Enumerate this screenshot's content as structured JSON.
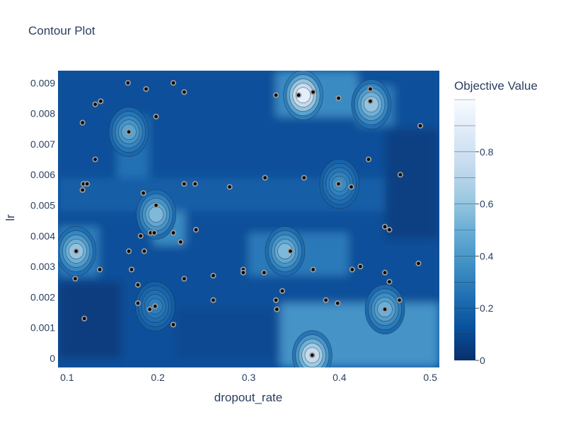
{
  "chart_data": {
    "type": "contour",
    "title": "Contour Plot",
    "xlabel": "dropout_rate",
    "ylabel": "lr",
    "xlim": [
      0.09,
      0.51
    ],
    "ylim": [
      -0.0003,
      0.0094
    ],
    "x_ticks": [
      0.1,
      0.2,
      0.3,
      0.4,
      0.5
    ],
    "x_tick_labels": [
      "0.1",
      "0.2",
      "0.3",
      "0.4",
      "0.5"
    ],
    "y_ticks": [
      0,
      0.001,
      0.002,
      0.003,
      0.004,
      0.005,
      0.006,
      0.007,
      0.008,
      0.009
    ],
    "y_tick_labels": [
      "0",
      "0.001",
      "0.002",
      "0.003",
      "0.004",
      "0.005",
      "0.006",
      "0.007",
      "0.008",
      "0.009"
    ],
    "colorbar": {
      "title": "Objective Value",
      "range": [
        0,
        1
      ],
      "ticks": [
        0,
        0.2,
        0.4,
        0.6,
        0.8
      ],
      "tick_labels": [
        "0",
        "0.2",
        "0.4",
        "0.6",
        "0.8"
      ],
      "colorscale": [
        "#08306b",
        "#08519c",
        "#2171b5",
        "#4292c6",
        "#6baed6",
        "#9ecae1",
        "#c6dbef",
        "#deebf7",
        "#f7fbff"
      ]
    },
    "background_level": 0.12,
    "regions": [
      {
        "x": [
          0.09,
          0.51
        ],
        "y": [
          -0.0003,
          0.0094
        ],
        "value": 0.12
      },
      {
        "x": [
          0.335,
          0.51
        ],
        "y": [
          -0.0003,
          0.0018
        ],
        "value": 0.38
      },
      {
        "x": [
          0.09,
          0.135
        ],
        "y": [
          0.0027,
          0.0043
        ],
        "value": 0.3
      },
      {
        "x": [
          0.155,
          0.19
        ],
        "y": [
          0.0059,
          0.0079
        ],
        "value": 0.25
      },
      {
        "x": [
          0.195,
          0.23
        ],
        "y": [
          0.0037,
          0.0056
        ],
        "value": 0.35
      },
      {
        "x": [
          0.33,
          0.42
        ],
        "y": [
          0.0079,
          0.0094
        ],
        "value": 0.35
      },
      {
        "x": [
          0.3,
          0.41
        ],
        "y": [
          0.0027,
          0.0041
        ],
        "value": 0.28
      },
      {
        "x": [
          0.42,
          0.46
        ],
        "y": [
          0.0076,
          0.0089
        ],
        "value": 0.3
      },
      {
        "x": [
          0.09,
          0.51
        ],
        "y": [
          0.0048,
          0.0059
        ],
        "value": 0.18
      },
      {
        "x": [
          0.22,
          0.33
        ],
        "y": [
          0.0,
          0.0016
        ],
        "value": 0.1
      },
      {
        "x": [
          0.09,
          0.16
        ],
        "y": [
          0.0,
          0.0025
        ],
        "value": 0.05
      },
      {
        "x": [
          0.45,
          0.51
        ],
        "y": [
          0.0039,
          0.0075
        ],
        "value": 0.06
      }
    ],
    "peaks": [
      {
        "x": 0.37,
        "y": 0.0001,
        "value": 0.75
      },
      {
        "x": 0.36,
        "y": 0.0086,
        "value": 0.9
      },
      {
        "x": 0.435,
        "y": 0.0083,
        "value": 0.6
      },
      {
        "x": 0.34,
        "y": 0.0035,
        "value": 0.55
      },
      {
        "x": 0.11,
        "y": 0.0035,
        "value": 0.6
      },
      {
        "x": 0.168,
        "y": 0.0074,
        "value": 0.45
      },
      {
        "x": 0.198,
        "y": 0.0047,
        "value": 0.55
      },
      {
        "x": 0.45,
        "y": 0.0016,
        "value": 0.5
      },
      {
        "x": 0.4,
        "y": 0.0057,
        "value": 0.35
      },
      {
        "x": 0.197,
        "y": 0.0017,
        "value": 0.3
      }
    ],
    "points": [
      {
        "x": 0.167,
        "y": 0.009
      },
      {
        "x": 0.187,
        "y": 0.0088
      },
      {
        "x": 0.217,
        "y": 0.009
      },
      {
        "x": 0.229,
        "y": 0.0087
      },
      {
        "x": 0.131,
        "y": 0.0083
      },
      {
        "x": 0.137,
        "y": 0.0084
      },
      {
        "x": 0.117,
        "y": 0.0077
      },
      {
        "x": 0.198,
        "y": 0.0079
      },
      {
        "x": 0.168,
        "y": 0.0074
      },
      {
        "x": 0.131,
        "y": 0.0065
      },
      {
        "x": 0.118,
        "y": 0.0057
      },
      {
        "x": 0.122,
        "y": 0.0057
      },
      {
        "x": 0.117,
        "y": 0.0055
      },
      {
        "x": 0.184,
        "y": 0.0054
      },
      {
        "x": 0.229,
        "y": 0.0057
      },
      {
        "x": 0.241,
        "y": 0.0057
      },
      {
        "x": 0.279,
        "y": 0.0056
      },
      {
        "x": 0.318,
        "y": 0.0059
      },
      {
        "x": 0.361,
        "y": 0.0059
      },
      {
        "x": 0.399,
        "y": 0.0057
      },
      {
        "x": 0.413,
        "y": 0.0056
      },
      {
        "x": 0.467,
        "y": 0.006
      },
      {
        "x": 0.432,
        "y": 0.0065
      },
      {
        "x": 0.489,
        "y": 0.0076
      },
      {
        "x": 0.198,
        "y": 0.005
      },
      {
        "x": 0.192,
        "y": 0.0041
      },
      {
        "x": 0.196,
        "y": 0.0041
      },
      {
        "x": 0.217,
        "y": 0.0041
      },
      {
        "x": 0.225,
        "y": 0.0038
      },
      {
        "x": 0.242,
        "y": 0.0042
      },
      {
        "x": 0.181,
        "y": 0.004
      },
      {
        "x": 0.185,
        "y": 0.0035
      },
      {
        "x": 0.168,
        "y": 0.0035
      },
      {
        "x": 0.11,
        "y": 0.0035
      },
      {
        "x": 0.171,
        "y": 0.0029
      },
      {
        "x": 0.136,
        "y": 0.0029
      },
      {
        "x": 0.109,
        "y": 0.0026
      },
      {
        "x": 0.178,
        "y": 0.0024
      },
      {
        "x": 0.229,
        "y": 0.0026
      },
      {
        "x": 0.261,
        "y": 0.0027
      },
      {
        "x": 0.294,
        "y": 0.0029
      },
      {
        "x": 0.294,
        "y": 0.0028
      },
      {
        "x": 0.317,
        "y": 0.0028
      },
      {
        "x": 0.346,
        "y": 0.0035
      },
      {
        "x": 0.371,
        "y": 0.0029
      },
      {
        "x": 0.414,
        "y": 0.0029
      },
      {
        "x": 0.423,
        "y": 0.003
      },
      {
        "x": 0.45,
        "y": 0.0043
      },
      {
        "x": 0.455,
        "y": 0.0042
      },
      {
        "x": 0.487,
        "y": 0.0031
      },
      {
        "x": 0.45,
        "y": 0.0028
      },
      {
        "x": 0.455,
        "y": 0.0025
      },
      {
        "x": 0.466,
        "y": 0.0019
      },
      {
        "x": 0.45,
        "y": 0.0016
      },
      {
        "x": 0.337,
        "y": 0.0022
      },
      {
        "x": 0.33,
        "y": 0.0019
      },
      {
        "x": 0.331,
        "y": 0.0016
      },
      {
        "x": 0.385,
        "y": 0.0019
      },
      {
        "x": 0.398,
        "y": 0.0018
      },
      {
        "x": 0.261,
        "y": 0.0019
      },
      {
        "x": 0.178,
        "y": 0.0018
      },
      {
        "x": 0.191,
        "y": 0.0016
      },
      {
        "x": 0.197,
        "y": 0.0017
      },
      {
        "x": 0.119,
        "y": 0.0013
      },
      {
        "x": 0.217,
        "y": 0.0011
      },
      {
        "x": 0.37,
        "y": 0.0001
      },
      {
        "x": 0.33,
        "y": 0.0086
      },
      {
        "x": 0.355,
        "y": 0.0086
      },
      {
        "x": 0.371,
        "y": 0.0087
      },
      {
        "x": 0.399,
        "y": 0.0085
      },
      {
        "x": 0.434,
        "y": 0.0088
      },
      {
        "x": 0.434,
        "y": 0.0084
      }
    ]
  }
}
